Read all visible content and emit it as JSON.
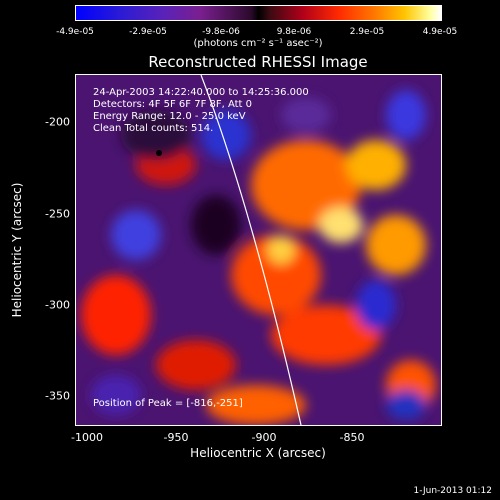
{
  "colorbar": {
    "ticks": [
      "-4.9e-05",
      "-2.9e-05",
      "-9.8e-06",
      "9.8e-06",
      "2.9e-05",
      "4.9e-05"
    ],
    "units": "(photons cm⁻² s⁻¹ asec⁻²)"
  },
  "title": "Reconstructed RHESSI Image",
  "info": {
    "time_range": "24-Apr-2003 14:22:40.000 to 14:25:36.000",
    "detectors": "Detectors: 4F 5F 6F 7F 8F, Att 0",
    "energy": "Energy Range: 12.0 - 25.0 keV",
    "clean": "Clean    Total counts: 514."
  },
  "peak_label": "Position of Peak = [-816,-251]",
  "axes": {
    "xlabel": "Heliocentric X (arcsec)",
    "ylabel": "Heliocentric Y (arcsec)",
    "xticks": [
      "-1000",
      "-950",
      "-900",
      "-850"
    ],
    "yticks": [
      "-200",
      "-250",
      "-300",
      "-350"
    ]
  },
  "date_stamp": "1-Jun-2013 01:12",
  "colors": {
    "cold": "#0000ff",
    "hot": "#ffffff",
    "limb": "#ffffff"
  }
}
